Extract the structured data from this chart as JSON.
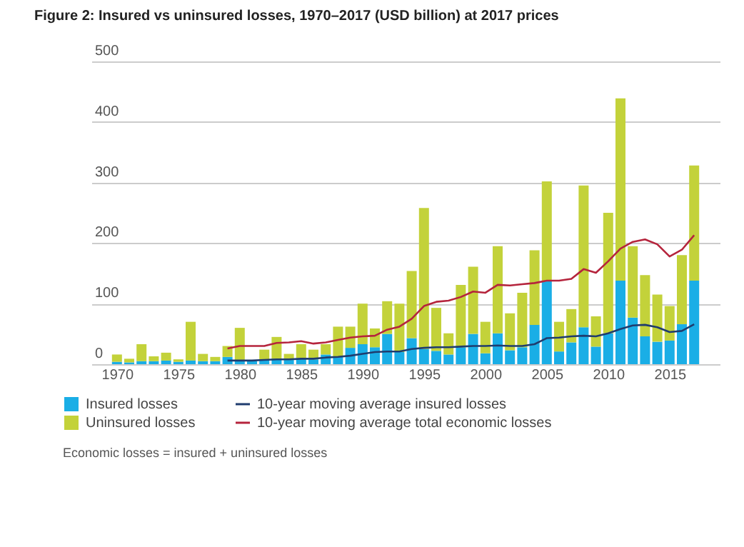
{
  "chart_data": {
    "type": "bar",
    "stacked": true,
    "title": "Figure 2: Insured vs uninsured losses, 1970–2017 (USD billion) at 2017 prices",
    "x": [
      1970,
      1971,
      1972,
      1973,
      1974,
      1975,
      1976,
      1977,
      1978,
      1979,
      1980,
      1981,
      1982,
      1983,
      1984,
      1985,
      1986,
      1987,
      1988,
      1989,
      1990,
      1991,
      1992,
      1993,
      1994,
      1995,
      1996,
      1997,
      1998,
      1999,
      2000,
      2001,
      2002,
      2003,
      2004,
      2005,
      2006,
      2007,
      2008,
      2009,
      2010,
      2011,
      2012,
      2013,
      2014,
      2015,
      2016,
      2017
    ],
    "series": [
      {
        "name": "Insured losses",
        "color": "#1aaee6",
        "values": [
          4,
          3,
          5,
          5,
          6,
          4,
          6,
          5,
          5,
          12,
          6,
          5,
          7,
          9,
          7,
          10,
          8,
          16,
          12,
          27,
          33,
          28,
          50,
          20,
          43,
          25,
          22,
          16,
          28,
          50,
          18,
          51,
          23,
          28,
          65,
          137,
          21,
          36,
          61,
          29,
          51,
          138,
          77,
          46,
          37,
          39,
          66,
          138
        ]
      },
      {
        "name": "Uninsured losses",
        "color": "#c3d23a",
        "values": [
          12,
          6,
          28,
          8,
          13,
          4,
          64,
          12,
          7,
          18,
          54,
          null,
          17,
          36,
          10,
          23,
          16,
          17,
          50,
          35,
          67,
          31,
          54,
          80,
          111,
          233,
          71,
          35,
          103,
          111,
          52,
          144,
          61,
          90,
          123,
          165,
          49,
          55,
          234,
          50,
          199,
          301,
          118,
          101,
          78,
          57,
          114,
          190
        ]
      },
      {
        "name": "10-year moving average insured losses",
        "type": "line",
        "color": "#1f3c6e",
        "x": [
          1979,
          1980,
          1981,
          1982,
          1983,
          1984,
          1985,
          1986,
          1987,
          1988,
          1989,
          1990,
          1991,
          1992,
          1993,
          1994,
          1995,
          1996,
          1997,
          1998,
          1999,
          2000,
          2001,
          2002,
          2003,
          2004,
          2005,
          2006,
          2007,
          2008,
          2009,
          2010,
          2011,
          2012,
          2013,
          2014,
          2015,
          2016,
          2017
        ],
        "values": [
          6,
          6,
          6,
          7,
          8,
          8,
          9,
          9,
          11,
          12,
          14,
          17,
          20,
          21,
          21,
          25,
          27,
          28,
          28,
          29,
          30,
          30,
          31,
          30,
          30,
          33,
          43,
          44,
          46,
          47,
          46,
          51,
          58,
          64,
          65,
          61,
          53,
          55,
          66
        ]
      },
      {
        "name": "10-year moving average total economic losses",
        "type": "line",
        "color": "#b5243c",
        "x": [
          1979,
          1980,
          1981,
          1982,
          1983,
          1984,
          1985,
          1986,
          1987,
          1988,
          1989,
          1990,
          1991,
          1992,
          1993,
          1994,
          1995,
          1996,
          1997,
          1998,
          1999,
          2000,
          2001,
          2002,
          2003,
          2004,
          2005,
          2006,
          2007,
          2008,
          2009,
          2010,
          2011,
          2012,
          2013,
          2014,
          2015,
          2016,
          2017
        ],
        "values": [
          26,
          30,
          30,
          30,
          35,
          36,
          38,
          34,
          36,
          40,
          44,
          46,
          47,
          57,
          62,
          75,
          96,
          103,
          105,
          111,
          120,
          118,
          131,
          130,
          132,
          134,
          138,
          138,
          141,
          157,
          151,
          170,
          191,
          202,
          206,
          198,
          178,
          189,
          213
        ]
      }
    ],
    "xlim": [
      1968.5,
      2018.5
    ],
    "xticks": [
      1970,
      1975,
      1980,
      1985,
      1990,
      1995,
      2000,
      2005,
      2010,
      2015
    ],
    "ylim": [
      0,
      500
    ],
    "yticks": [
      0,
      100,
      200,
      300,
      400,
      500
    ],
    "grid": "y",
    "legend": "bottom left",
    "annotations": [
      "Economic losses = insured + uninsured losses"
    ]
  }
}
